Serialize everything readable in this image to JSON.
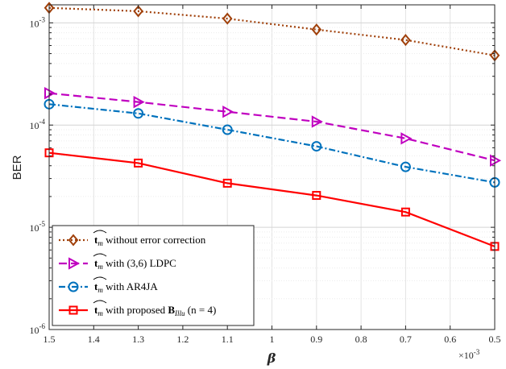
{
  "chart_data": {
    "type": "line",
    "xlabel": "β",
    "ylabel": "BER",
    "x_scale_label": "×10",
    "x_scale_exponent": "-3",
    "x_reversed": true,
    "xlim": [
      0.5,
      1.5
    ],
    "y_scale": "log",
    "ylim": [
      1e-06,
      0.0015
    ],
    "grid": true,
    "legend_position": "bottom-left",
    "x_ticks": [
      {
        "value": 1.5,
        "label": "1.5"
      },
      {
        "value": 1.4,
        "label": "1.4"
      },
      {
        "value": 1.3,
        "label": "1.3"
      },
      {
        "value": 1.2,
        "label": "1.2"
      },
      {
        "value": 1.1,
        "label": "1.1"
      },
      {
        "value": 1.0,
        "label": "1"
      },
      {
        "value": 0.9,
        "label": "0.9"
      },
      {
        "value": 0.8,
        "label": "0.8"
      },
      {
        "value": 0.7,
        "label": "0.7"
      },
      {
        "value": 0.6,
        "label": "0.6"
      },
      {
        "value": 0.5,
        "label": "0.5"
      }
    ],
    "y_ticks": [
      {
        "exponent": -3,
        "base": "10",
        "exp_label": "-3"
      },
      {
        "exponent": -4,
        "base": "10",
        "exp_label": "-4"
      },
      {
        "exponent": -5,
        "base": "10",
        "exp_label": "-5"
      },
      {
        "exponent": -6,
        "base": "10",
        "exp_label": "-6"
      }
    ],
    "x": [
      1.5,
      1.3,
      1.1,
      0.9,
      0.7,
      0.5
    ],
    "series": [
      {
        "legend_hat": "t",
        "legend_sub": "m",
        "legend_text": " without error correction",
        "color": "#A0400A",
        "dash": "2,3",
        "marker": "diamond",
        "values": [
          0.0014,
          0.0013,
          0.0011,
          0.00086,
          0.00068,
          0.00048
        ]
      },
      {
        "legend_hat": "t",
        "legend_sub": "m",
        "legend_text": " with (3,6) LDPC",
        "color": "#C000C0",
        "dash": "10,5",
        "marker": "triangle-right",
        "values": [
          0.000205,
          0.000168,
          0.000135,
          0.000108,
          7.4e-05,
          4.5e-05
        ]
      },
      {
        "legend_hat": "t",
        "legend_sub": "m",
        "legend_text": " with AR4JA",
        "color": "#0072BD",
        "dash": "8,3,2,3",
        "marker": "circle",
        "values": [
          0.00016,
          0.00013,
          9e-05,
          6.2e-05,
          3.9e-05,
          2.75e-05
        ]
      },
      {
        "legend_hat": "t",
        "legend_sub": "m",
        "legend_text": " with proposed ",
        "legend_bold": "B",
        "legend_bold_sub": "Illu",
        "legend_tail": " (n = 4)",
        "color": "#FF0000",
        "dash": "",
        "marker": "square",
        "values": [
          5.35e-05,
          4.25e-05,
          2.7e-05,
          2.05e-05,
          1.41e-05,
          6.5e-06
        ]
      }
    ]
  }
}
